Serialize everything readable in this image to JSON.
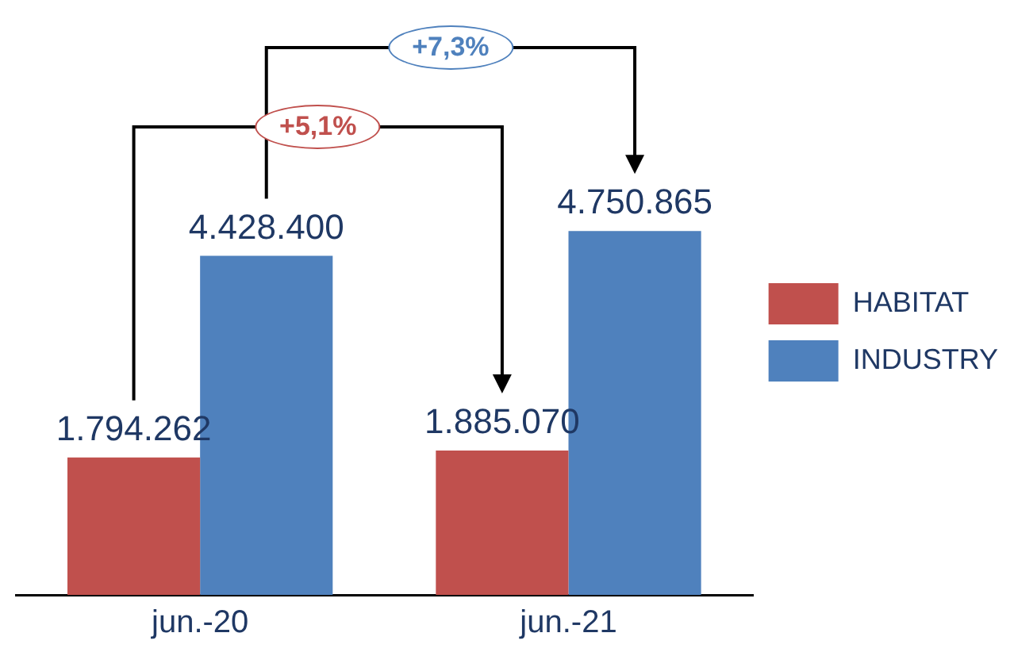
{
  "chart_data": {
    "type": "bar",
    "categories": [
      "jun.-20",
      "jun.-21"
    ],
    "series": [
      {
        "name": "HABITAT",
        "color": "#c0504d",
        "values": [
          1794262,
          1885070
        ],
        "value_labels": [
          "1.794.262",
          "1.885.070"
        ]
      },
      {
        "name": "INDUSTRY",
        "color": "#4f81bd",
        "values": [
          4428400,
          4750865
        ],
        "value_labels": [
          "4.428.400",
          "4.750.865"
        ]
      }
    ],
    "annotations": [
      "+5,1%",
      "+7,3%"
    ],
    "legend": "right",
    "grid": false
  }
}
